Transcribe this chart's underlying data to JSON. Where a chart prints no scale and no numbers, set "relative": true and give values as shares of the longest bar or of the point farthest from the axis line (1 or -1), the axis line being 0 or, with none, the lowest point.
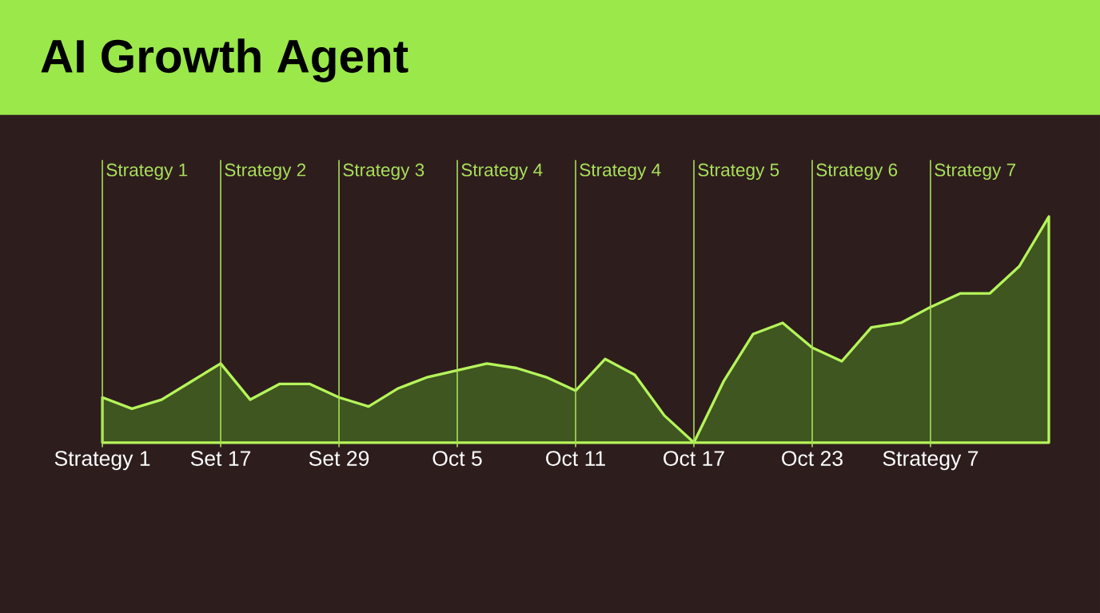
{
  "chart_data": {
    "type": "area",
    "title": "AI Growth Agent",
    "relative": true,
    "categories": [
      "Strategy 1",
      null,
      null,
      null,
      "Set 17",
      null,
      null,
      null,
      "Set 29",
      null,
      null,
      null,
      "Oct 5",
      null,
      null,
      null,
      "Oct 11",
      null,
      null,
      null,
      "Oct 17",
      null,
      null,
      null,
      "Oct 23",
      null,
      null,
      null,
      "Strategy 7",
      null,
      null,
      null,
      null
    ],
    "series": [
      {
        "color": "#b5f55a",
        "values": [
          0.2,
          0.15,
          0.19,
          0.27,
          0.35,
          0.19,
          0.26,
          0.26,
          0.2,
          0.16,
          0.24,
          0.29,
          0.32,
          0.35,
          0.33,
          0.29,
          0.23,
          0.37,
          0.3,
          0.12,
          0,
          0.27,
          0.48,
          0.53,
          0.42,
          0.36,
          0.51,
          0.53,
          0.6,
          0.66,
          0.66,
          0.78,
          1
        ]
      }
    ],
    "ref_lines": [
      {
        "axis": "x",
        "value": "Strategy 1",
        "label": "Strategy 1",
        "color": "#a8e05a"
      },
      {
        "axis": "x",
        "value": "Set 17",
        "label": "Strategy 2",
        "color": "#a8e05a"
      },
      {
        "axis": "x",
        "value": "Set 29",
        "label": "Strategy 3",
        "color": "#a8e05a"
      },
      {
        "axis": "x",
        "value": "Oct 5",
        "label": "Strategy 4",
        "color": "#a8e05a"
      },
      {
        "axis": "x",
        "value": "Oct 11",
        "label": "Strategy 4",
        "color": "#a8e05a"
      },
      {
        "axis": "x",
        "value": "Oct 17",
        "label": "Strategy 5",
        "color": "#a8e05a"
      },
      {
        "axis": "x",
        "value": "Oct 23",
        "label": "Strategy 6",
        "color": "#a8e05a"
      },
      {
        "axis": "x",
        "value": "Strategy 7",
        "label": "Strategy 7",
        "color": "#a8e05a"
      }
    ]
  }
}
